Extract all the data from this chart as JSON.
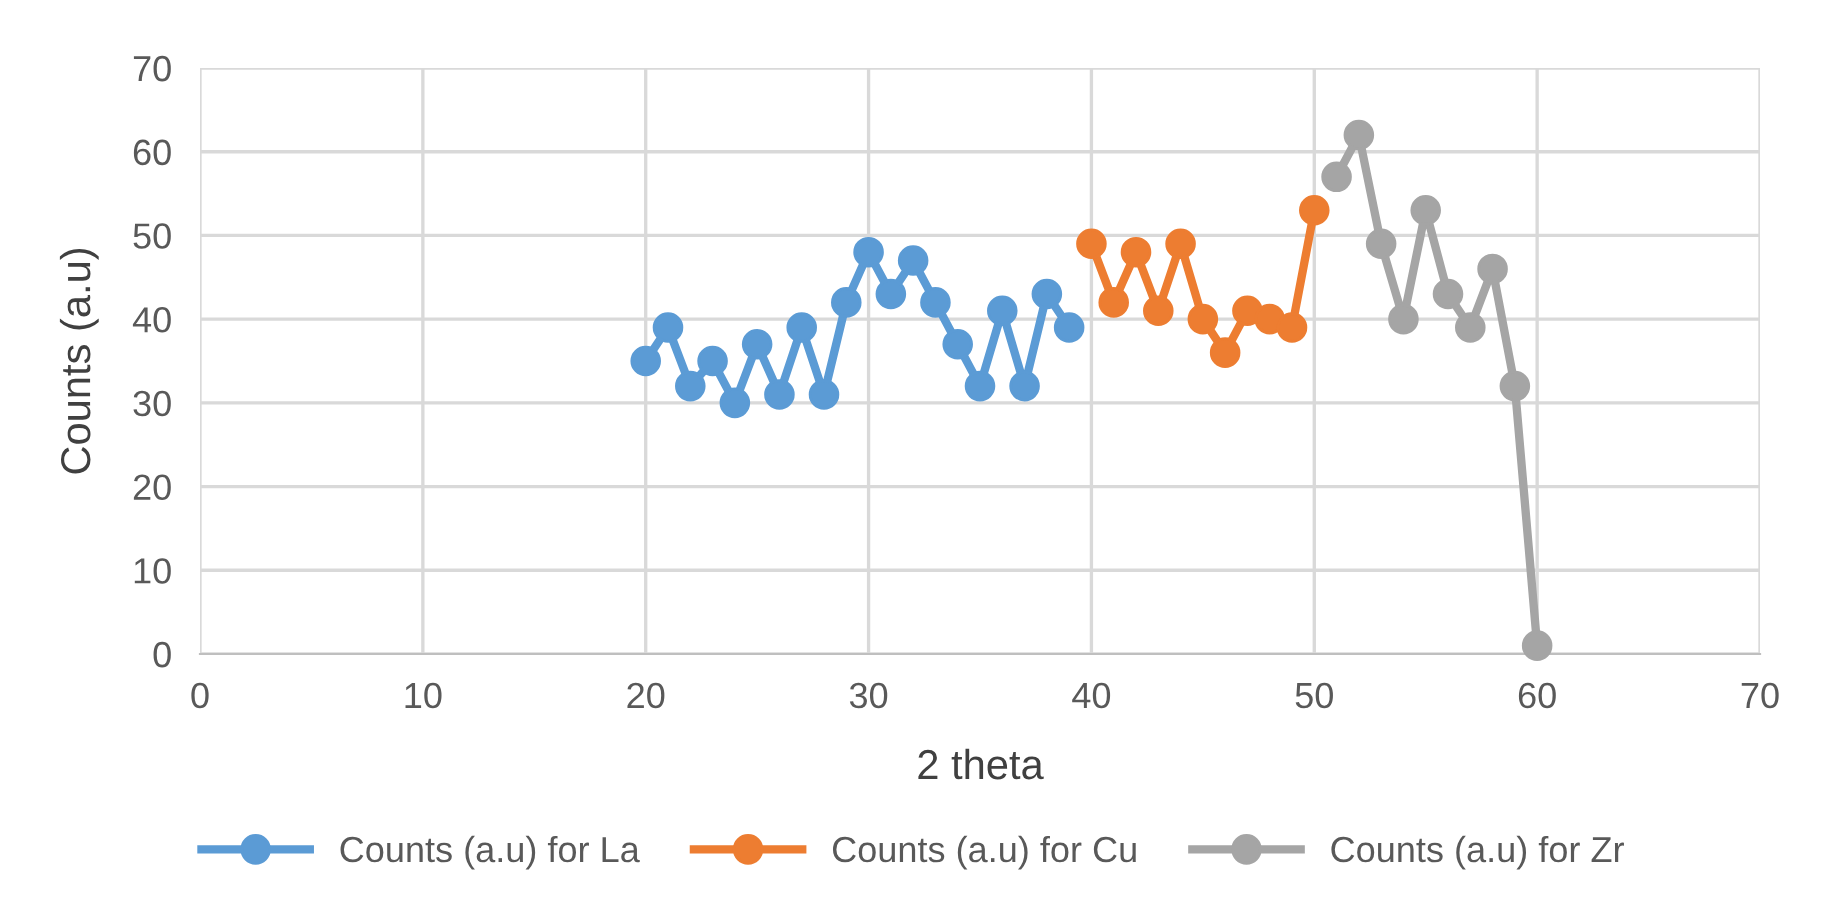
{
  "chart_data": {
    "type": "line",
    "xlabel": "2 theta",
    "ylabel": "Counts (a.u)",
    "xlim": [
      0,
      70
    ],
    "xticks": [
      0,
      10,
      20,
      30,
      40,
      50,
      60,
      70
    ],
    "ylim": [
      0,
      70
    ],
    "yticks": [
      0,
      10,
      20,
      30,
      40,
      50,
      60,
      70
    ],
    "grid": true,
    "legend": "bottom",
    "marker": "circle",
    "line_style": "solid",
    "series": [
      {
        "name": "Counts (a.u) for La",
        "color": "#5b9bd5",
        "x": [
          20,
          21,
          22,
          23,
          24,
          25,
          26,
          27,
          28,
          29,
          30,
          31,
          32,
          33,
          34,
          35,
          36,
          37,
          38,
          39
        ],
        "values": [
          35,
          39,
          32,
          35,
          30,
          37,
          31,
          39,
          31,
          42,
          48,
          43,
          47,
          42,
          37,
          32,
          41,
          32,
          43,
          39
        ]
      },
      {
        "name": "Counts (a.u) for Cu",
        "color": "#ed7d31",
        "x": [
          40,
          41,
          42,
          43,
          44,
          45,
          46,
          47,
          48,
          49,
          50
        ],
        "values": [
          49,
          42,
          48,
          41,
          49,
          40,
          36,
          41,
          40,
          39,
          53
        ]
      },
      {
        "name": "Counts (a.u) for Zr",
        "color": "#a5a5a5",
        "x": [
          51,
          52,
          53,
          54,
          55,
          56,
          57,
          58,
          59,
          60
        ],
        "values": [
          57,
          62,
          49,
          40,
          53,
          43,
          39,
          46,
          32,
          1
        ]
      }
    ]
  }
}
